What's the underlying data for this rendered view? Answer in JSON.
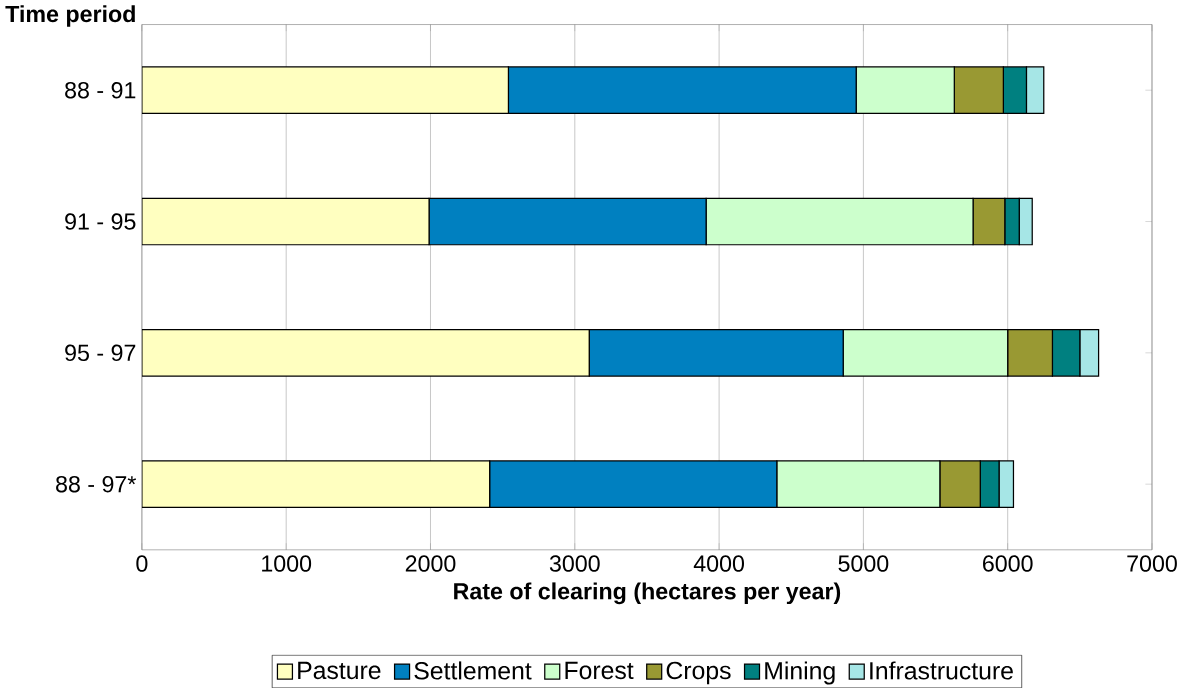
{
  "chart_data": {
    "type": "bar",
    "orientation": "horizontal",
    "stacked": true,
    "ylabel": "Time period",
    "xlabel": "Rate of clearing (hectares per year)",
    "categories": [
      "88 - 91",
      "91 - 95",
      "95 - 97",
      "88 - 97*"
    ],
    "series": [
      {
        "name": "Pasture",
        "color": "#ffffc0",
        "values": [
          2540,
          1990,
          3100,
          2410
        ]
      },
      {
        "name": "Settlement",
        "color": "#0080c0",
        "values": [
          2410,
          1920,
          1760,
          1990
        ]
      },
      {
        "name": "Forest",
        "color": "#ccffcc",
        "values": [
          680,
          1850,
          1140,
          1130
        ]
      },
      {
        "name": "Crops",
        "color": "#999933",
        "values": [
          340,
          220,
          310,
          280
        ]
      },
      {
        "name": "Mining",
        "color": "#008080",
        "values": [
          160,
          100,
          190,
          130
        ]
      },
      {
        "name": "Infrastructure",
        "color": "#a6e6e6",
        "values": [
          120,
          90,
          130,
          100
        ]
      }
    ],
    "xlim": [
      0,
      7000
    ],
    "xticks": [
      0,
      1000,
      2000,
      3000,
      4000,
      5000,
      6000,
      7000
    ],
    "grid": "x",
    "legend": "bottom"
  }
}
